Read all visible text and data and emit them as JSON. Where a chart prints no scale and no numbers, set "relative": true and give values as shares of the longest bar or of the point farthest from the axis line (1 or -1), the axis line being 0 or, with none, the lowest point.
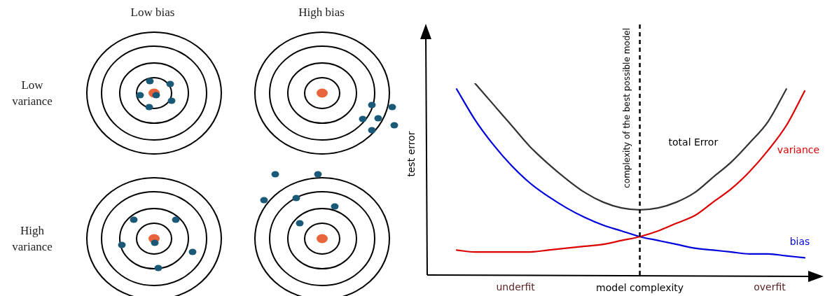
{
  "chart_data": [
    {
      "type": "other",
      "annotations": [
        "Low bias",
        "High bias",
        "Low variance",
        "High variance"
      ]
    },
    {
      "type": "line",
      "relative": true,
      "categories": [
        null,
        null,
        null,
        null,
        null,
        null,
        null,
        null,
        null,
        null,
        null,
        null,
        null,
        null,
        null,
        null,
        null,
        null,
        null,
        null
      ],
      "xlabel": "model complexity",
      "ylabel": "test error",
      "legend": false,
      "marker": "none",
      "line_style": "solid",
      "series": [
        {
          "name": "total Error",
          "color": "#333333",
          "values": [
            null,
            1.0,
            0.89,
            0.78,
            0.67,
            0.58,
            0.5,
            0.43,
            0.38,
            0.35,
            0.34,
            0.35,
            0.38,
            0.43,
            0.51,
            0.59,
            0.69,
            0.8,
            0.97,
            null
          ]
        },
        {
          "name": "variance",
          "color": "#dd0000",
          "values": [
            0.13,
            0.12,
            0.12,
            0.12,
            0.12,
            0.13,
            0.14,
            0.15,
            0.16,
            0.18,
            0.2,
            0.23,
            0.27,
            0.31,
            0.38,
            0.45,
            0.54,
            0.65,
            0.78,
            0.96
          ]
        },
        {
          "name": "bias",
          "color": "#0000dd",
          "values": [
            0.97,
            0.81,
            0.68,
            0.57,
            0.48,
            0.41,
            0.35,
            0.3,
            0.26,
            0.23,
            0.2,
            0.18,
            0.16,
            0.14,
            0.13,
            0.12,
            0.11,
            0.11,
            0.1,
            0.09
          ]
        }
      ],
      "annotations": [
        "underfit",
        "overfit",
        "complexity of the best possible model"
      ]
    }
  ]
}
